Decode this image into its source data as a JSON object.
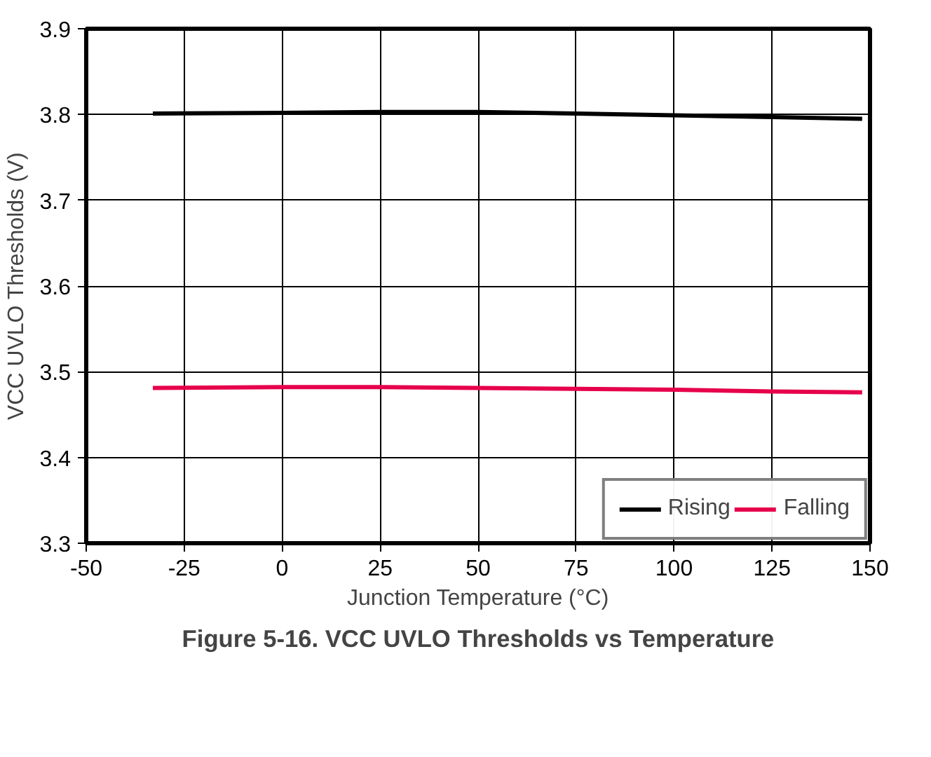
{
  "chart_data": {
    "type": "line",
    "title": "Figure 5-16. VCC UVLO Thresholds vs Temperature",
    "xlabel": "Junction Temperature (°C)",
    "ylabel": "VCC UVLO Thresholds (V)",
    "x": [
      -33,
      0,
      25,
      50,
      75,
      100,
      125,
      148
    ],
    "series": [
      {
        "name": "Rising",
        "color": "#000000",
        "values": [
          3.801,
          3.802,
          3.803,
          3.803,
          3.801,
          3.799,
          3.797,
          3.795
        ]
      },
      {
        "name": "Falling",
        "color": "#e6004c",
        "values": [
          3.481,
          3.482,
          3.482,
          3.481,
          3.48,
          3.479,
          3.477,
          3.476
        ]
      }
    ],
    "xlim": [
      -50,
      150
    ],
    "xticks": [
      -50,
      -25,
      0,
      25,
      50,
      75,
      100,
      125,
      150
    ],
    "ylim": [
      3.3,
      3.9
    ],
    "yticks": [
      3.3,
      3.4,
      3.5,
      3.6,
      3.7,
      3.8,
      3.9
    ],
    "grid": true,
    "legend": "bottom right",
    "marker": "none",
    "line_style": "solid"
  }
}
